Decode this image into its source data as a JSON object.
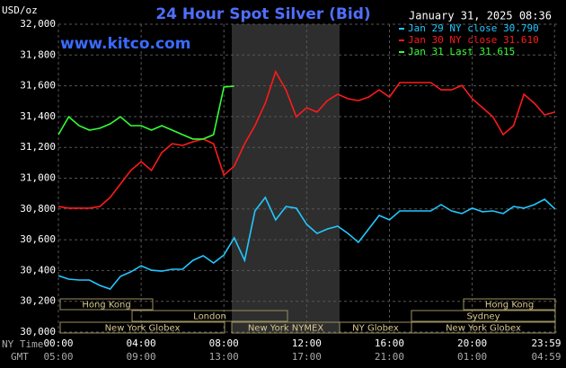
{
  "chart_data": {
    "type": "line",
    "title": "24 Hour Spot Silver (Bid)",
    "y_unit": "USD/oz",
    "timestamp": "January 31, 2025 08:36",
    "source": "www.kitco.com",
    "ny_time_label": "NY Time",
    "gmt_label": "GMT",
    "x": [
      0,
      0.5,
      1,
      1.5,
      2,
      2.5,
      3,
      3.5,
      4,
      4.5,
      5,
      5.5,
      6,
      6.5,
      7,
      7.5,
      8,
      8.5,
      9,
      9.5,
      10,
      10.5,
      11,
      11.5,
      12,
      12.5,
      13,
      13.5,
      14,
      14.5,
      15,
      15.5,
      16,
      16.5,
      17,
      17.5,
      18,
      18.5,
      19,
      19.5,
      20,
      20.5,
      21,
      21.5,
      22,
      22.5,
      23,
      23.5,
      24
    ],
    "xlim": [
      0,
      24.1
    ],
    "xticks": [
      {
        "value": 0,
        "label": "00:00"
      },
      {
        "value": 4,
        "label": "04:00"
      },
      {
        "value": 8,
        "label": "08:00"
      },
      {
        "value": 12,
        "label": "12:00"
      },
      {
        "value": 16,
        "label": "16:00"
      },
      {
        "value": 20,
        "label": "20:00"
      },
      {
        "value": 23.98,
        "label": "23:59"
      }
    ],
    "gmt_labels": [
      "05:00",
      "09:00",
      "13:00",
      "17:00",
      "21:00",
      "01:00",
      "04:59"
    ],
    "ylim": [
      30000,
      32000
    ],
    "yticks": [
      {
        "value": 30000,
        "label": "30,000"
      },
      {
        "value": 30200,
        "label": "30,200"
      },
      {
        "value": 30400,
        "label": "30,400"
      },
      {
        "value": 30600,
        "label": "30,600"
      },
      {
        "value": 30800,
        "label": "30,800"
      },
      {
        "value": 31000,
        "label": "31,000"
      },
      {
        "value": 31200,
        "label": "31,200"
      },
      {
        "value": 31400,
        "label": "31,400"
      },
      {
        "value": 31600,
        "label": "31,600"
      },
      {
        "value": 31800,
        "label": "31,800"
      },
      {
        "value": 32000,
        "label": "32,000"
      }
    ],
    "grid": true,
    "sessions": [
      "Hong Kong",
      "London",
      "New York Globex",
      "New York NYMEX",
      "NY Globex",
      "Hong Kong",
      "Sydney",
      "New York Globex"
    ],
    "series": [
      {
        "name": "Jan 29 NY close 30.790",
        "color": "#22c8ff",
        "values": [
          30367,
          30344,
          30338,
          30338,
          30303,
          30280,
          30362,
          30391,
          30431,
          30402,
          30396,
          30408,
          30408,
          30466,
          30496,
          30449,
          30501,
          30612,
          30466,
          30787,
          30875,
          30729,
          30816,
          30805,
          30700,
          30641,
          30670,
          30688,
          30641,
          30583,
          30670,
          30758,
          30729,
          30787,
          30787,
          30787,
          30787,
          30828,
          30787,
          30770,
          30805,
          30782,
          30787,
          30770,
          30816,
          30805,
          30828,
          30863,
          30800
        ]
      },
      {
        "name": "Jan 30 NY close 31.610",
        "color": "#ff1a1a",
        "values": [
          30816,
          30805,
          30805,
          30805,
          30816,
          30875,
          30962,
          31050,
          31108,
          31050,
          31166,
          31224,
          31213,
          31236,
          31254,
          31224,
          31020,
          31079,
          31224,
          31341,
          31487,
          31691,
          31574,
          31399,
          31458,
          31429,
          31504,
          31545,
          31516,
          31504,
          31527,
          31574,
          31527,
          31621,
          31621,
          31621,
          31621,
          31574,
          31574,
          31603,
          31516,
          31458,
          31399,
          31283,
          31341,
          31545,
          31487,
          31411,
          31429
        ]
      },
      {
        "name": "Jan 31 Last 31.615",
        "color": "#33ff33",
        "values": [
          31283,
          31399,
          31341,
          31312,
          31324,
          31353,
          31399,
          31341,
          31341,
          31312,
          31341,
          31312,
          31283,
          31254,
          31254,
          31283,
          31592,
          31598,
          null,
          null,
          null,
          null,
          null,
          null,
          null,
          null,
          null,
          null,
          null,
          null,
          null,
          null,
          null,
          null,
          null,
          null,
          null,
          null,
          null,
          null,
          null,
          null,
          null,
          null,
          null,
          null,
          null,
          null,
          null
        ]
      }
    ]
  }
}
